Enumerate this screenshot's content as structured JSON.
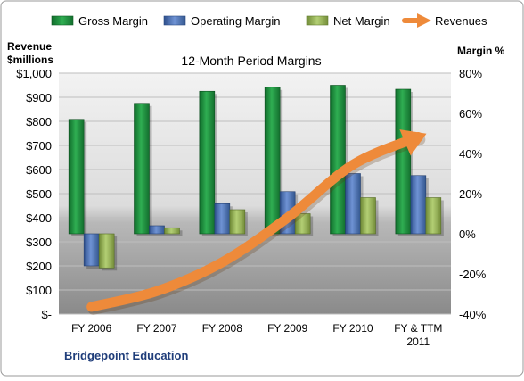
{
  "chart_data": {
    "type": "bar",
    "title": "12-Month Period Margins",
    "company": "Bridgepoint Education",
    "left_axis": {
      "label_lines": [
        "Revenue",
        "$millions"
      ],
      "range": [
        0,
        1000
      ],
      "ticks": [
        "$-",
        "$100",
        "$200",
        "$300",
        "$400",
        "$500",
        "$600",
        "$700",
        "$800",
        "$900",
        "$1,000"
      ]
    },
    "right_axis": {
      "label": "Margin %",
      "range": [
        -40,
        80
      ],
      "ticks": [
        "-40%",
        "-20%",
        "0%",
        "20%",
        "40%",
        "60%",
        "80%"
      ]
    },
    "categories": [
      [
        "FY 2006"
      ],
      [
        "FY 2007"
      ],
      [
        "FY 2008"
      ],
      [
        "FY 2009"
      ],
      [
        "FY 2010"
      ],
      [
        "FY & TTM",
        "2011"
      ]
    ],
    "series": [
      {
        "name": "Gross Margin",
        "axis": "right",
        "color": "#1e8f3e",
        "values": [
          57,
          65,
          71,
          73,
          74,
          72
        ]
      },
      {
        "name": "Operating Margin",
        "axis": "right",
        "color": "#4a70b8",
        "values": [
          -16,
          4,
          15,
          21,
          30,
          29
        ]
      },
      {
        "name": "Net Margin",
        "axis": "right",
        "color": "#95b552",
        "values": [
          -17,
          3,
          12,
          10,
          18,
          18
        ]
      }
    ],
    "line": {
      "name": "Revenues",
      "axis": "left",
      "color": "#ee8a3a",
      "style": "arrow",
      "values": [
        30,
        95,
        215,
        400,
        620,
        735
      ]
    },
    "legend": {
      "placement": "top"
    },
    "grid": true
  }
}
